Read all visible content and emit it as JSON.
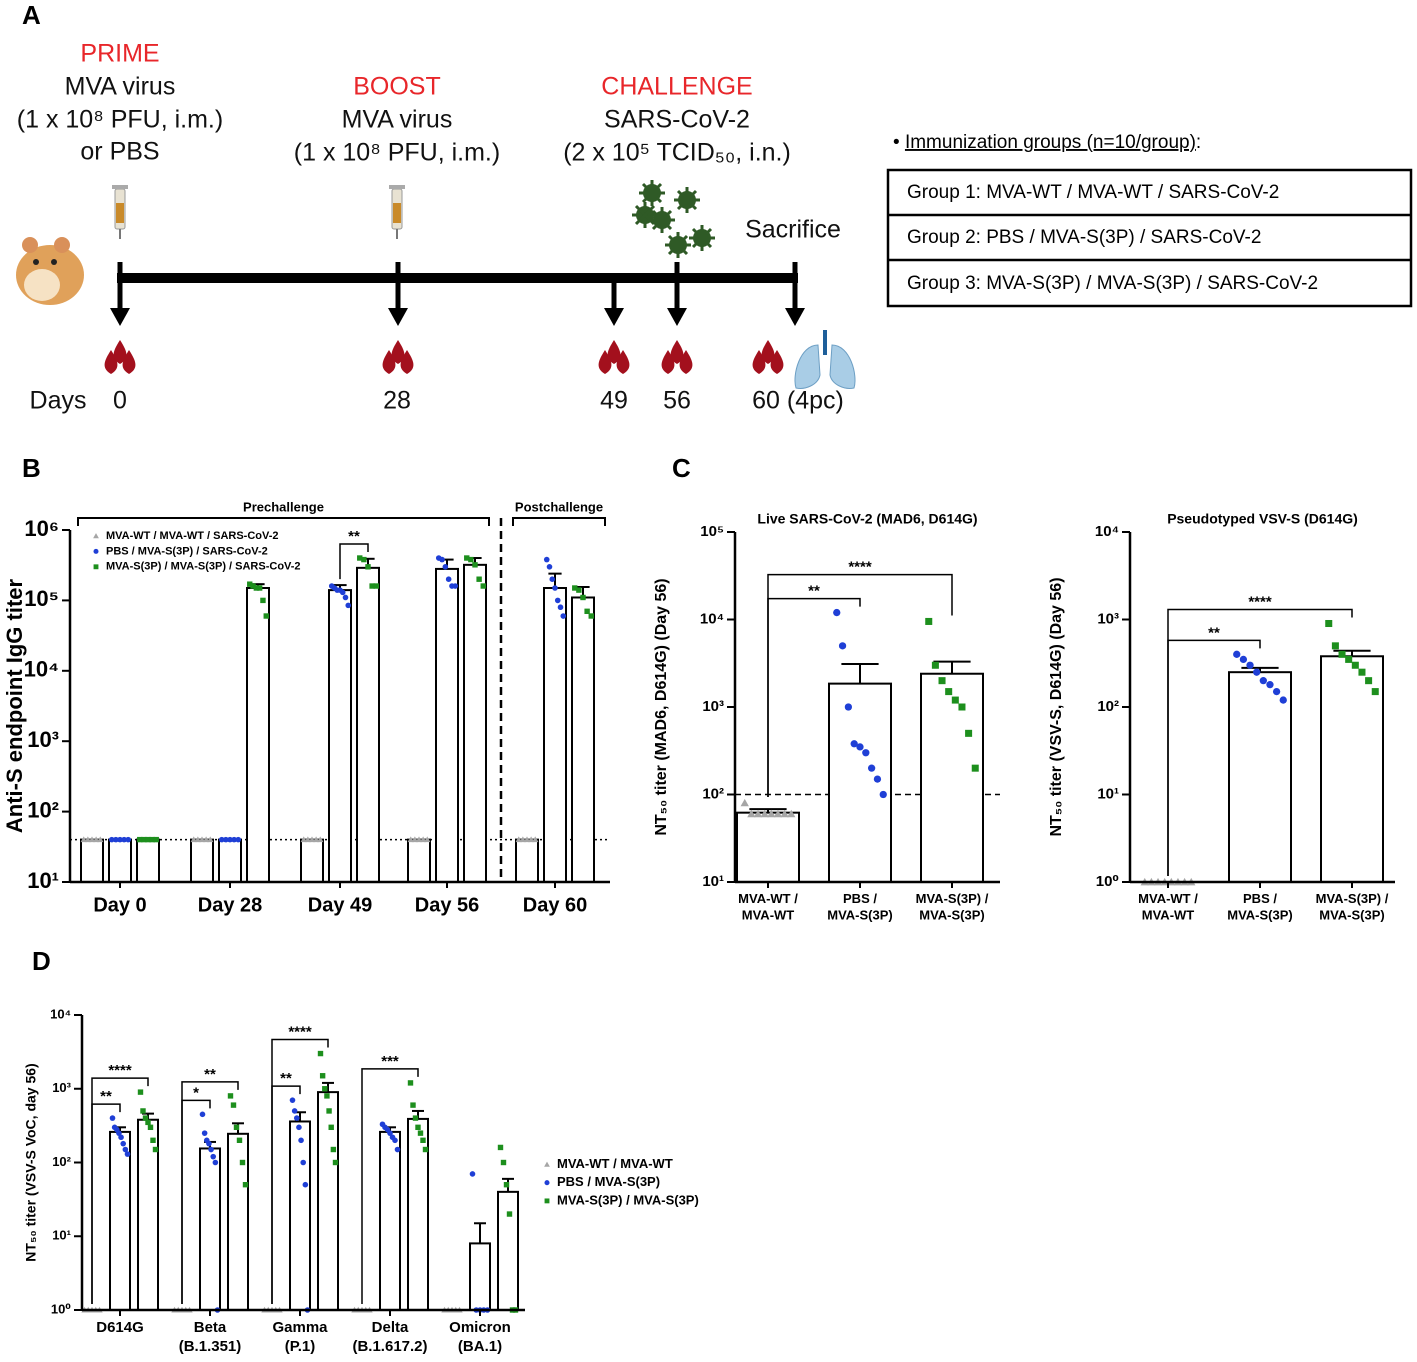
{
  "panel_a": {
    "panel": "A",
    "prime": {
      "title": "PRIME",
      "lines": [
        "MVA virus",
        "(1 x 10⁸ PFU, i.m.)",
        "or PBS"
      ]
    },
    "boost": {
      "title": "BOOST",
      "lines": [
        "MVA virus",
        "(1 x 10⁸ PFU, i.m.)"
      ]
    },
    "challenge": {
      "title": "CHALLENGE",
      "lines": [
        "SARS-CoV-2",
        "(2 x 10⁵ TCID₅₀, i.n.)"
      ]
    },
    "sacrifice": "Sacrifice",
    "days_label": "Days",
    "days": [
      "0",
      "28",
      "49",
      "56",
      "60 (4pc)"
    ],
    "groups": {
      "bullet": "•",
      "title": "Immunization groups (n=10/group)",
      "colon": ":",
      "rows": [
        "Group 1: MVA-WT / MVA-WT / SARS-CoV-2",
        "Group 2: PBS / MVA-S(3P) / SARS-CoV-2",
        "Group 3: MVA-S(3P) / MVA-S(3P) / SARS-CoV-2"
      ]
    }
  },
  "chart_data": [
    {
      "type": "bar",
      "panel": "B",
      "log_scale": true,
      "legend": "upper left",
      "ylabel": "Anti-S endpoint IgG titer",
      "categories": [
        "Day 0",
        "Day 28",
        "Day 49",
        "Day 56",
        "Day 60"
      ],
      "series": [
        {
          "name": "MVA-WT / MVA-WT / SARS-CoV-2",
          "color": "#a6a6a6",
          "marker": "triangle",
          "values": [
            40,
            40,
            40,
            40,
            40
          ],
          "errors": [
            0,
            0,
            0,
            0,
            0
          ],
          "points": [
            [
              40,
              40,
              40,
              40,
              40
            ],
            [
              40,
              40,
              40,
              40,
              40
            ],
            [
              40,
              40,
              40,
              40,
              40
            ],
            [
              40,
              40,
              40,
              40,
              40
            ],
            [
              40,
              40,
              40,
              40,
              40
            ]
          ]
        },
        {
          "name": "PBS / MVA-S(3P) / SARS-CoV-2",
          "color": "#1f3fd6",
          "marker": "circle",
          "values": [
            40,
            40,
            140000,
            280000,
            150000
          ],
          "errors": [
            0,
            0,
            25000,
            100000,
            90000
          ],
          "points": [
            [
              40,
              40,
              40,
              40,
              40
            ],
            [
              40,
              40,
              40,
              40,
              40
            ],
            [
              160000,
              150000,
              140000,
              140000,
              130000,
              110000,
              85000
            ],
            [
              400000,
              380000,
              300000,
              200000,
              160000,
              160000
            ],
            [
              380000,
              300000,
              200000,
              150000,
              100000,
              80000,
              60000
            ]
          ]
        },
        {
          "name": "MVA-S(3P) / MVA-S(3P) / SARS-CoV-2",
          "color": "#1d8f1d",
          "marker": "square",
          "values": [
            40,
            150000,
            290000,
            320000,
            110000
          ],
          "errors": [
            0,
            20000,
            100000,
            80000,
            45000
          ],
          "points": [
            [
              40,
              40,
              40,
              40,
              40
            ],
            [
              170000,
              160000,
              150000,
              150000,
              100000,
              60000
            ],
            [
              400000,
              380000,
              300000,
              160000,
              160000
            ],
            [
              400000,
              380000,
              320000,
              200000,
              160000
            ],
            [
              150000,
              140000,
              110000,
              70000,
              60000
            ]
          ]
        }
      ],
      "ylim": [
        10,
        1000000
      ],
      "yticks": [
        {
          "value": 10,
          "label": "10¹"
        },
        {
          "value": 100,
          "label": "10²"
        },
        {
          "value": 1000,
          "label": "10³"
        },
        {
          "value": 10000,
          "label": "10⁴"
        },
        {
          "value": 100000,
          "label": "10⁵"
        },
        {
          "value": 1000000,
          "label": "10⁶"
        }
      ],
      "reference_line": 40,
      "brackets": [
        {
          "label": "Prechallenge",
          "categories": [
            0,
            3
          ]
        },
        {
          "label": "Postchallenge",
          "categories": [
            4,
            4
          ]
        }
      ],
      "significance": [
        {
          "label": "**",
          "category": 2,
          "bars": [
            1,
            2
          ]
        }
      ]
    },
    {
      "type": "bar",
      "panel": "C",
      "log_scale": true,
      "title": "Live SARS-CoV-2 (MAD6, D614G)",
      "ylabel": "NT₅₀ titer (MAD6, D614G) (Day 56)",
      "categories": [
        [
          "MVA-WT /",
          "MVA-WT"
        ],
        [
          "PBS /",
          "MVA-S(3P)"
        ],
        [
          "MVA-S(3P) /",
          "MVA-S(3P)"
        ]
      ],
      "values": [
        62,
        1850,
        2400
      ],
      "errors": [
        6,
        1250,
        900
      ],
      "colors": [
        "#a6a6a6",
        "#1f3fd6",
        "#1d8f1d"
      ],
      "markers": [
        "triangle",
        "circle",
        "square"
      ],
      "points": [
        [
          80,
          60,
          60,
          60,
          60,
          60,
          60,
          60
        ],
        [
          12000,
          5000,
          1000,
          380,
          350,
          300,
          200,
          150,
          100
        ],
        [
          9500,
          3000,
          2000,
          1500,
          1200,
          1000,
          500,
          200
        ]
      ],
      "ylim": [
        10,
        100000
      ],
      "yticks": [
        {
          "value": 10,
          "label": "10¹"
        },
        {
          "value": 100,
          "label": "10²"
        },
        {
          "value": 1000,
          "label": "10³"
        },
        {
          "value": 10000,
          "label": "10⁴"
        },
        {
          "value": 100000,
          "label": "10⁵"
        }
      ],
      "reference_line": 100,
      "significance": [
        {
          "label": "**",
          "bars": [
            0,
            1
          ]
        },
        {
          "label": "****",
          "bars": [
            0,
            2
          ]
        }
      ]
    },
    {
      "type": "bar",
      "log_scale": true,
      "title": "Pseudotyped VSV-S (D614G)",
      "ylabel": "NT₅₀ titer (VSV-S, D614G) (Day 56)",
      "categories": [
        [
          "MVA-WT /",
          "MVA-WT"
        ],
        [
          "PBS /",
          "MVA-S(3P)"
        ],
        [
          "MVA-S(3P) /",
          "MVA-S(3P)"
        ]
      ],
      "values": [
        1,
        250,
        380
      ],
      "errors": [
        0,
        30,
        60
      ],
      "colors": [
        "#a6a6a6",
        "#1f3fd6",
        "#1d8f1d"
      ],
      "markers": [
        "triangle",
        "circle",
        "square"
      ],
      "points": [
        [
          1,
          1,
          1,
          1,
          1,
          1,
          1,
          1
        ],
        [
          400,
          350,
          300,
          250,
          200,
          180,
          150,
          120
        ],
        [
          900,
          500,
          400,
          350,
          300,
          250,
          200,
          150
        ]
      ],
      "ylim": [
        1,
        10000
      ],
      "yticks": [
        {
          "value": 1,
          "label": "10⁰"
        },
        {
          "value": 10,
          "label": "10¹"
        },
        {
          "value": 100,
          "label": "10²"
        },
        {
          "value": 1000,
          "label": "10³"
        },
        {
          "value": 10000,
          "label": "10⁴"
        }
      ],
      "significance": [
        {
          "label": "**",
          "bars": [
            0,
            1
          ]
        },
        {
          "label": "****",
          "bars": [
            0,
            2
          ]
        }
      ]
    },
    {
      "type": "bar",
      "panel": "D",
      "log_scale": true,
      "legend": "right",
      "ylabel": "NT₅₀ titer (VSV-S VoC, day 56)",
      "categories": [
        [
          "D614G"
        ],
        [
          "Beta",
          "(B.1.351)"
        ],
        [
          "Gamma",
          "(P.1)"
        ],
        [
          "Delta",
          "(B.1.617.2)"
        ],
        [
          "Omicron",
          "(BA.1)"
        ]
      ],
      "series": [
        {
          "name": "MVA-WT / MVA-WT",
          "color": "#a6a6a6",
          "marker": "triangle",
          "values": [
            1,
            1,
            1,
            1,
            1
          ],
          "errors": [
            0,
            0,
            0,
            0,
            0
          ],
          "points": [
            [
              1,
              1,
              1,
              1,
              1
            ],
            [
              1,
              1,
              1,
              1,
              1
            ],
            [
              1,
              1,
              1,
              1,
              1
            ],
            [
              1,
              1,
              1,
              1,
              1
            ],
            [
              1,
              1,
              1,
              1,
              1
            ]
          ]
        },
        {
          "name": "PBS / MVA-S(3P)",
          "color": "#1f3fd6",
          "marker": "circle",
          "values": [
            260,
            155,
            360,
            260,
            8
          ],
          "errors": [
            40,
            35,
            120,
            40,
            7
          ],
          "points": [
            [
              400,
              300,
              280,
              250,
              220,
              180,
              150,
              130
            ],
            [
              450,
              250,
              200,
              180,
              150,
              120,
              100,
              1
            ],
            [
              700,
              500,
              400,
              300,
              200,
              100,
              50,
              1
            ],
            [
              330,
              300,
              280,
              250,
              220,
              200,
              150
            ],
            [
              70,
              1,
              1,
              1,
              1
            ]
          ]
        },
        {
          "name": "MVA-S(3P) / MVA-S(3P)",
          "color": "#1d8f1d",
          "marker": "square",
          "values": [
            380,
            245,
            900,
            390,
            40
          ],
          "errors": [
            80,
            95,
            300,
            110,
            20
          ],
          "points": [
            [
              900,
              500,
              400,
              350,
              300,
              200,
              150
            ],
            [
              800,
              600,
              300,
              200,
              100,
              50
            ],
            [
              3000,
              1500,
              1000,
              800,
              500,
              300,
              150,
              100
            ],
            [
              1200,
              600,
              400,
              300,
              250,
              200,
              150
            ],
            [
              160,
              100,
              50,
              20,
              1,
              1
            ]
          ]
        }
      ],
      "ylim": [
        1,
        10000
      ],
      "yticks": [
        {
          "value": 1,
          "label": "10⁰"
        },
        {
          "value": 10,
          "label": "10¹"
        },
        {
          "value": 100,
          "label": "10²"
        },
        {
          "value": 1000,
          "label": "10³"
        },
        {
          "value": 10000,
          "label": "10⁴"
        }
      ],
      "significance": [
        {
          "label": "**",
          "category": 0,
          "bars": [
            0,
            1
          ]
        },
        {
          "label": "****",
          "category": 0,
          "bars": [
            0,
            2
          ]
        },
        {
          "label": "*",
          "category": 1,
          "bars": [
            0,
            1
          ]
        },
        {
          "label": "**",
          "category": 1,
          "bars": [
            0,
            2
          ]
        },
        {
          "label": "**",
          "category": 2,
          "bars": [
            0,
            1
          ]
        },
        {
          "label": "****",
          "category": 2,
          "bars": [
            0,
            2
          ]
        },
        {
          "label": "***",
          "category": 3,
          "bars": [
            0,
            2
          ]
        }
      ]
    }
  ]
}
